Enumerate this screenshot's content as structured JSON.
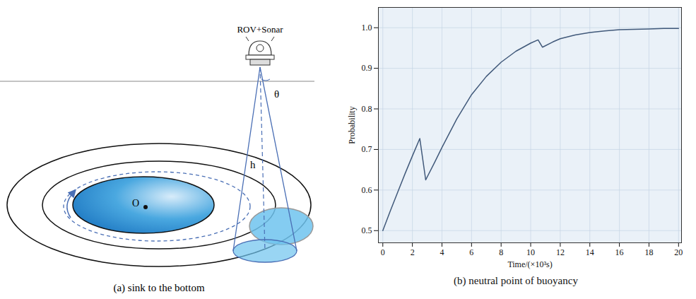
{
  "diagram": {
    "label": "ROV+Sonar",
    "angle": "θ",
    "height": "h",
    "center": "O",
    "caption": "(a) sink to the bottom"
  },
  "chart_data": {
    "type": "line",
    "caption": "(b) neutral point of buoyancy",
    "xlabel": "Time/(×10³s)",
    "ylabel": "Probability",
    "x": [
      0,
      0.5,
      1,
      1.5,
      2,
      2.5,
      2.9,
      3.5,
      4,
      5,
      6,
      7,
      8,
      9,
      10,
      10.5,
      10.8,
      11.5,
      12,
      13,
      14,
      15,
      16,
      17,
      18,
      19,
      20
    ],
    "values": [
      0.5,
      0.548,
      0.594,
      0.64,
      0.684,
      0.727,
      0.625,
      0.668,
      0.705,
      0.775,
      0.835,
      0.88,
      0.915,
      0.942,
      0.962,
      0.97,
      0.952,
      0.965,
      0.973,
      0.982,
      0.988,
      0.992,
      0.995,
      0.996,
      0.997,
      0.998,
      0.998
    ],
    "color": "#41597a",
    "xlim": [
      -0.3,
      20.2
    ],
    "ylim": [
      0.47,
      1.05
    ],
    "xticks": [
      0,
      2,
      4,
      6,
      8,
      10,
      12,
      14,
      16,
      18,
      20
    ],
    "yticks": [
      0.5,
      0.6,
      0.7,
      0.8,
      0.9,
      {
        "value": 1,
        "label": "1.0"
      }
    ],
    "grid": true
  }
}
